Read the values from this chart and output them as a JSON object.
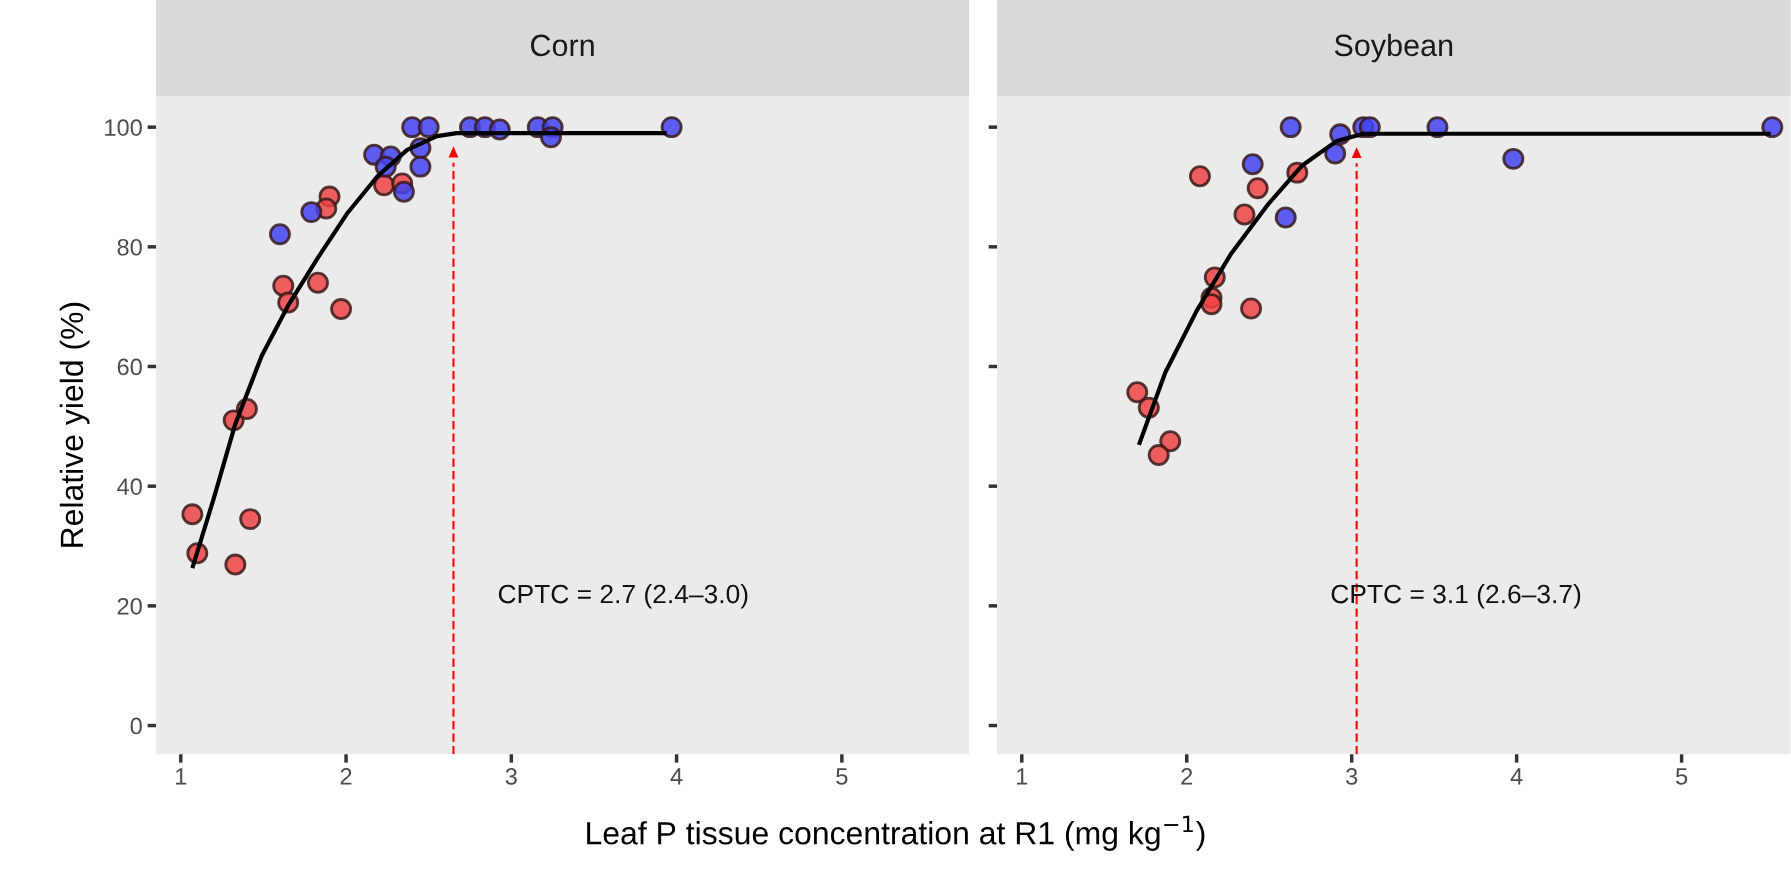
{
  "chart_data": [
    {
      "type": "scatter",
      "title": "Corn",
      "ylabel": "Relative yield (%)",
      "xlabel": "Leaf P tissue concentration at R1 (mg kg$^{−1}$)",
      "xlim": [
        0.85,
        5.77
      ],
      "ylim": [
        -4.8,
        105.2
      ],
      "xticks": [
        1,
        2,
        3,
        4,
        5
      ],
      "yticks": [
        0,
        20,
        40,
        60,
        80,
        100
      ],
      "grid": false,
      "marker": "circle",
      "series": [
        {
          "color": "#ef4444",
          "x": [
            1.07,
            1.1,
            1.33,
            1.42,
            1.32,
            1.4,
            1.62,
            1.65,
            1.83,
            1.97,
            1.9,
            1.88,
            2.23,
            2.34
          ],
          "values": [
            35.3,
            28.8,
            26.9,
            34.5,
            51.0,
            52.9,
            73.5,
            70.7,
            74.0,
            69.6,
            88.4,
            86.4,
            90.3,
            90.6
          ]
        },
        {
          "color": "#4343f2",
          "x": [
            1.6,
            1.79,
            2.17,
            2.27,
            2.24,
            2.35,
            2.45,
            2.45,
            2.4,
            2.5,
            2.75,
            2.84,
            2.93,
            3.16,
            3.25,
            3.24,
            3.97
          ],
          "values": [
            82.1,
            85.8,
            95.4,
            95.1,
            93.4,
            89.2,
            96.5,
            93.4,
            100,
            100,
            100,
            100,
            99.6,
            100,
            100,
            98.3,
            100
          ]
        },
        {
          "type": "line",
          "color": "#000000",
          "marker": "none",
          "x": [
            1.07,
            1.2,
            1.33,
            1.49,
            1.65,
            1.83,
            2.01,
            2.19,
            2.37,
            2.55,
            2.67,
            3.94
          ],
          "values": [
            26.3,
            38.0,
            50.4,
            61.8,
            70.2,
            78.2,
            85.7,
            91.8,
            96.2,
            98.5,
            99.0,
            99.0
          ]
        }
      ],
      "ref_lines": [
        {
          "axis": "x",
          "value": 2.65,
          "color": "#ff0000",
          "line_style": "dashed"
        }
      ],
      "annotations": [
        "CPTC = 2.7 (2.4–3.0)"
      ]
    },
    {
      "type": "scatter",
      "title": "Soybean",
      "tick_labels": "x",
      "xlim": [
        0.85,
        5.66
      ],
      "ylim": [
        -4.8,
        105.2
      ],
      "xticks": [
        1,
        2,
        3,
        4,
        5
      ],
      "grid": false,
      "marker": "circle",
      "series": [
        {
          "color": "#ef4444",
          "x": [
            1.7,
            1.77,
            1.9,
            1.83,
            2.17,
            2.15,
            2.15,
            2.39,
            2.35,
            2.43,
            2.08,
            2.67
          ],
          "values": [
            55.7,
            53.1,
            47.5,
            45.2,
            74.9,
            71.5,
            70.4,
            69.7,
            85.4,
            89.8,
            91.8,
            92.4
          ]
        },
        {
          "color": "#4343f2",
          "x": [
            2.63,
            2.4,
            2.6,
            2.93,
            2.9,
            3.07,
            3.11,
            3.52,
            3.98,
            5.55
          ],
          "values": [
            100,
            93.8,
            84.9,
            98.8,
            95.6,
            100,
            100,
            100,
            94.7,
            100
          ]
        },
        {
          "type": "line",
          "color": "#000000",
          "marker": "none",
          "x": [
            1.71,
            1.87,
            2.06,
            2.27,
            2.49,
            2.7,
            2.91,
            3.07,
            5.54
          ],
          "values": [
            46.9,
            59.0,
            69.3,
            78.9,
            87.0,
            93.6,
            97.7,
            98.9,
            98.9
          ]
        }
      ],
      "ref_lines": [
        {
          "axis": "x",
          "value": 3.03,
          "color": "#ff0000",
          "line_style": "dashed"
        }
      ],
      "annotations": [
        "CPTC = 3.1 (2.6–3.7)"
      ]
    }
  ]
}
